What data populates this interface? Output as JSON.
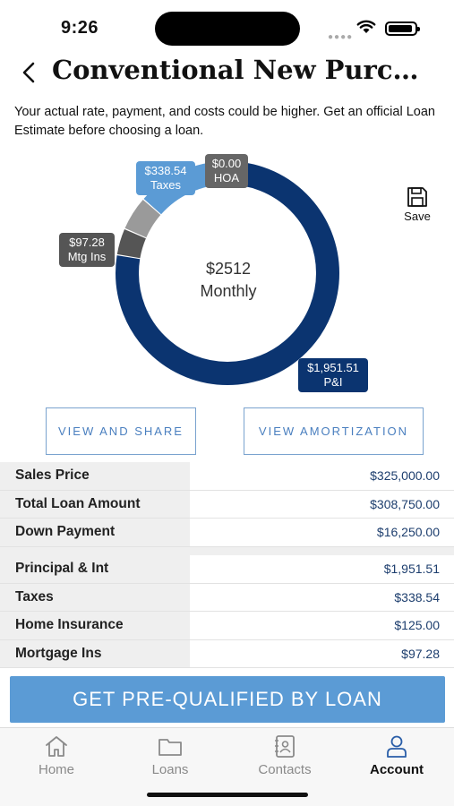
{
  "status_bar": {
    "time": "9:26"
  },
  "header": {
    "title": "Conventional New Purc…",
    "back_icon": "chevron-left-icon"
  },
  "disclaimer": "Your actual rate, payment, and costs could be higher. Get an official Loan Estimate before choosing a loan.",
  "payment_chart": {
    "center_amount": "$2512",
    "center_label": "Monthly",
    "segments": [
      {
        "label": "P&I",
        "amount": "$1,951.51",
        "value": 1951.51,
        "color": "#0b3470"
      },
      {
        "label": "Mtg Ins",
        "amount": "$97.28",
        "value": 97.28,
        "color": "#555555"
      },
      {
        "label": "Home Insurance",
        "amount": "$125.00",
        "value": 125.0,
        "color": "#9a9a9a"
      },
      {
        "label": "Taxes",
        "amount": "$338.54",
        "value": 338.54,
        "color": "#5b9bd5"
      },
      {
        "label": "HOA",
        "amount": "$0.00",
        "value": 0,
        "color": "#666666"
      }
    ],
    "callouts": {
      "taxes": {
        "amount": "$338.54",
        "label": "Taxes"
      },
      "hoa": {
        "amount": "$0.00",
        "label": "HOA"
      },
      "mi": {
        "amount": "$97.28",
        "label": "Mtg Ins"
      },
      "pi": {
        "amount": "$1,951.51",
        "label": "P&I"
      }
    }
  },
  "save": {
    "label": "Save",
    "icon": "floppy-disk-icon"
  },
  "actions": {
    "view_share": "VIEW AND SHARE",
    "view_amortization": "VIEW AMORTIZATION"
  },
  "loan_summary": [
    {
      "label": "Sales Price",
      "value": "$325,000.00"
    },
    {
      "label": "Total Loan Amount",
      "value": "$308,750.00"
    },
    {
      "label": "Down Payment",
      "value": "$16,250.00"
    }
  ],
  "payment_breakdown": [
    {
      "label": "Principal & Int",
      "value": "$1,951.51"
    },
    {
      "label": "Taxes",
      "value": "$338.54"
    },
    {
      "label": "Home Insurance",
      "value": "$125.00"
    },
    {
      "label": "Mortgage Ins",
      "value": "$97.28"
    }
  ],
  "cta": {
    "label": "GET PRE-QUALIFIED BY LOAN"
  },
  "tabs": [
    {
      "label": "Home",
      "icon": "home-icon",
      "active": false
    },
    {
      "label": "Loans",
      "icon": "folder-icon",
      "active": false
    },
    {
      "label": "Contacts",
      "icon": "contacts-book-icon",
      "active": false
    },
    {
      "label": "Account",
      "icon": "person-icon",
      "active": true
    }
  ]
}
